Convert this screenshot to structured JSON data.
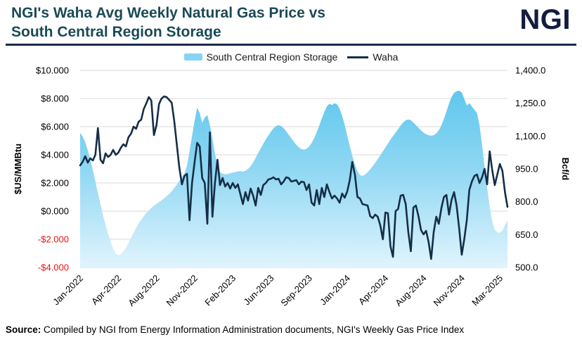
{
  "header": {
    "title_line1": "NGI's Waha Avg Weekly Natural Gas Price vs",
    "title_line2": "South Central Region Storage",
    "logo": "NGI"
  },
  "legend": {
    "storage_label": "South Central Region Storage",
    "waha_label": "Waha"
  },
  "source": {
    "label": "Source:",
    "text": "Compiled by NGI from Energy Information Administration documents, NGI's Weekly Gas Price Index"
  },
  "colors": {
    "title": "#1a4a57",
    "logo": "#121d3e",
    "divider": "#1b2b4d",
    "waha_line": "#152e46",
    "storage_swatch": "#87d3f1",
    "storage_fill_top": "#53c3ec",
    "storage_fill_mid": "#8fd7f3",
    "storage_fill_bottom": "#e0f4fd",
    "gridline": "#d8d8d8",
    "negative_tick": "#e51212",
    "axis_text": "#000000"
  },
  "chart_data": {
    "type": "combo",
    "title": "NGI's Waha Avg Weekly Natural Gas Price vs South Central Region Storage",
    "grid": true,
    "legend_position": "top",
    "x_axis": {
      "unit": "weekly, Jan-2022 through Mar-2025 (week index)",
      "ticks": [
        {
          "label": "Jan-2022",
          "week": 0
        },
        {
          "label": "Apr-2022",
          "week": 15
        },
        {
          "label": "Aug-2022",
          "week": 30
        },
        {
          "label": "Nov-2022",
          "week": 45
        },
        {
          "label": "Feb-2023",
          "week": 60
        },
        {
          "label": "Jun-2023",
          "week": 75
        },
        {
          "label": "Sep-2023",
          "week": 90
        },
        {
          "label": "Jan-2024",
          "week": 105
        },
        {
          "label": "Apr-2024",
          "week": 120
        },
        {
          "label": "Aug-2024",
          "week": 135
        },
        {
          "label": "Nov-2024",
          "week": 150
        },
        {
          "label": "Mar-2025",
          "week": 165
        }
      ]
    },
    "left_axis": {
      "title": "$US/MMBtu",
      "min": -4,
      "max": 10,
      "ticks": [
        {
          "label": "$10.000",
          "value": 10
        },
        {
          "label": "$8.000",
          "value": 8
        },
        {
          "label": "$6.000",
          "value": 6
        },
        {
          "label": "$4.000",
          "value": 4
        },
        {
          "label": "$2.000",
          "value": 2
        },
        {
          "label": "$0.000",
          "value": 0
        },
        {
          "label": "-$2.000",
          "value": -2
        },
        {
          "label": "-$4.000",
          "value": -4
        }
      ]
    },
    "right_axis": {
      "title": "Bcf/d",
      "min": 500,
      "max": 1400,
      "ticks": [
        {
          "label": "1,400.0",
          "value": 1400
        },
        {
          "label": "1,250.0",
          "value": 1250
        },
        {
          "label": "1,100.0",
          "value": 1100
        },
        {
          "label": "950.0",
          "value": 950
        },
        {
          "label": "800.0",
          "value": 800
        },
        {
          "label": "650.0",
          "value": 650
        },
        {
          "label": "500.0",
          "value": 500
        }
      ]
    },
    "series": [
      {
        "name": "South Central Region Storage",
        "type": "area",
        "axis": "right",
        "unit": "Bcf/d",
        "values": [
          1115,
          1098,
          1072,
          1035,
          992,
          945,
          893,
          840,
          788,
          738,
          692,
          652,
          618,
          585,
          562,
          556,
          560,
          572,
          590,
          612,
          635,
          658,
          680,
          700,
          718,
          734,
          748,
          760,
          772,
          782,
          790,
          798,
          806,
          815,
          825,
          836,
          848,
          862,
          878,
          895,
          912,
          930,
          965,
          1030,
          1100,
          1170,
          1230,
          1205,
          1160,
          1185,
          1195,
          1150,
          1090,
          1020,
          965,
          935,
          928,
          925,
          927,
          930,
          933,
          936,
          938,
          940,
          938,
          942,
          950,
          962,
          980,
          1000,
          1022,
          1044,
          1065,
          1085,
          1103,
          1120,
          1135,
          1145,
          1150,
          1146,
          1136,
          1122,
          1106,
          1090,
          1074,
          1060,
          1048,
          1040,
          1038,
          1042,
          1052,
          1068,
          1090,
          1118,
          1148,
          1180,
          1210,
          1235,
          1248,
          1242,
          1250,
          1245,
          1225,
          1192,
          1150,
          1102,
          1055,
          1010,
          970,
          940,
          922,
          918,
          924,
          935,
          948,
          962,
          978,
          995,
          1012,
          1030,
          1048,
          1066,
          1084,
          1100,
          1116,
          1132,
          1148,
          1162,
          1172,
          1176,
          1172,
          1162,
          1150,
          1138,
          1126,
          1116,
          1108,
          1104,
          1102,
          1104,
          1112,
          1126,
          1148,
          1178,
          1212,
          1248,
          1278,
          1297,
          1305,
          1307,
          1300,
          1270,
          1240,
          1250,
          1235,
          1220,
          1205,
          1150,
          1060,
          960,
          865,
          778,
          710,
          672,
          660,
          658,
          670,
          692,
          715
        ]
      },
      {
        "name": "Waha",
        "type": "line",
        "axis": "left",
        "unit": "$US/MMBtu",
        "values": [
          3.25,
          3.5,
          3.9,
          3.45,
          3.75,
          3.6,
          4.0,
          5.9,
          3.65,
          3.4,
          4.1,
          3.85,
          4.0,
          4.35,
          4.0,
          4.15,
          4.5,
          4.75,
          4.6,
          5.25,
          5.5,
          6.0,
          5.85,
          6.35,
          6.5,
          7.25,
          7.65,
          8.1,
          7.85,
          5.4,
          6.1,
          7.6,
          8.0,
          8.15,
          8.1,
          7.9,
          7.7,
          6.4,
          4.75,
          3.1,
          1.9,
          2.5,
          2.65,
          -0.65,
          2.0,
          3.5,
          4.85,
          4.6,
          2.35,
          2.0,
          -0.9,
          5.6,
          -0.4,
          2.0,
          3.65,
          1.85,
          2.35,
          1.75,
          2.0,
          1.6,
          2.0,
          1.65,
          1.9,
          1.2,
          0.5,
          1.35,
          0.75,
          1.6,
          1.1,
          0.4,
          1.65,
          1.15,
          1.85,
          2.0,
          2.25,
          2.3,
          2.4,
          2.25,
          2.3,
          1.9,
          2.1,
          2.4,
          2.35,
          2.1,
          2.15,
          2.2,
          1.9,
          2.1,
          2.05,
          1.5,
          1.9,
          0.6,
          0.4,
          1.5,
          0.5,
          1.65,
          1.0,
          1.9,
          1.35,
          0.9,
          1.1,
          0.9,
          0.6,
          1.25,
          0.95,
          1.4,
          2.2,
          3.5,
          2.6,
          1.0,
          0.9,
          0.5,
          0.45,
          0.4,
          -0.35,
          -0.5,
          -0.25,
          -0.4,
          -1.0,
          -2.0,
          -0.1,
          -0.15,
          -2.5,
          -3.25,
          0.0,
          0.15,
          1.1,
          1.15,
          0.5,
          -1.5,
          -2.85,
          0.25,
          0.4,
          -0.35,
          -1.35,
          -1.65,
          -1.4,
          -2.2,
          -3.4,
          -1.5,
          -0.4,
          -0.9,
          0.2,
          1.0,
          1.15,
          -0.25,
          0.8,
          1.35,
          0.4,
          -1.2,
          -3.1,
          -2.0,
          -0.65,
          1.5,
          2.1,
          2.5,
          2.6,
          2.0,
          2.4,
          3.0,
          1.9,
          4.25,
          2.9,
          1.85,
          2.6,
          3.35,
          2.85,
          1.35,
          0.3
        ]
      }
    ]
  }
}
